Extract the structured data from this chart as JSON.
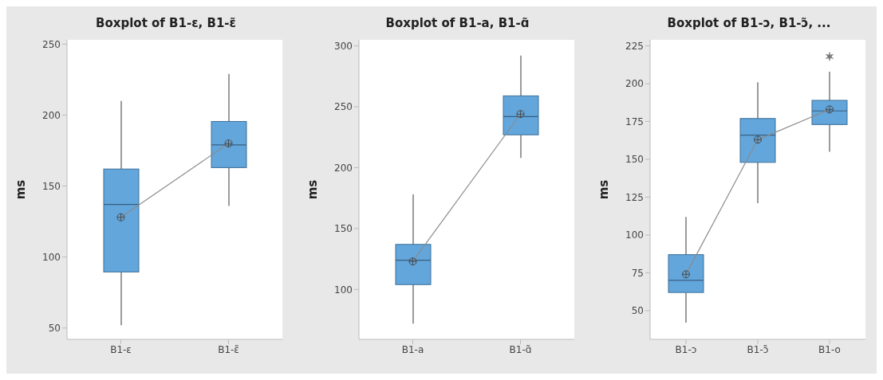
{
  "chart_data": [
    {
      "type": "box",
      "title": "Boxplot of B1-ε, B1-ε̃",
      "ylabel": "ms",
      "categories": [
        "B1-ε",
        "B1-ε̃"
      ],
      "ylim": [
        42,
        253
      ],
      "yticks": [
        50,
        100,
        150,
        200,
        250
      ],
      "grid": false,
      "legend": false,
      "color": "#62a6dc",
      "boxes": [
        {
          "low": 52,
          "q1": 89.5,
          "median": 137,
          "q3": 162,
          "high": 210,
          "mean": 128
        },
        {
          "low": 136,
          "q1": 163,
          "median": 179,
          "q3": 195.5,
          "high": 229,
          "mean": 180
        }
      ],
      "series": [
        {
          "type": "line",
          "color": "#8c8c8c",
          "values": [
            128,
            180
          ],
          "marker": "none"
        }
      ]
    },
    {
      "type": "box",
      "title": "Boxplot of B1-a, B1-ɑ̃",
      "ylabel": "ms",
      "categories": [
        "B1-a",
        "B1-ɑ̃"
      ],
      "ylim": [
        59,
        305
      ],
      "yticks": [
        100,
        150,
        200,
        250,
        300
      ],
      "grid": false,
      "legend": false,
      "color": "#62a6dc",
      "boxes": [
        {
          "low": 72,
          "q1": 104,
          "median": 124,
          "q3": 137,
          "high": 178,
          "mean": 123
        },
        {
          "low": 208,
          "q1": 227,
          "median": 242,
          "q3": 259,
          "high": 292,
          "mean": 244
        }
      ],
      "series": [
        {
          "type": "line",
          "color": "#8c8c8c",
          "values": [
            123,
            244
          ],
          "marker": "none"
        }
      ]
    },
    {
      "type": "box",
      "title": "Boxplot of B1-ɔ, B1-ɔ̃, ...",
      "ylabel": "ms",
      "categories": [
        "B1-ɔ",
        "B1-ɔ̃",
        "B1-o"
      ],
      "ylim": [
        31,
        229
      ],
      "yticks": [
        50,
        75,
        100,
        125,
        150,
        175,
        200,
        225
      ],
      "grid": false,
      "legend": false,
      "color": "#62a6dc",
      "boxes": [
        {
          "low": 42,
          "q1": 62,
          "median": 70,
          "q3": 87,
          "high": 112,
          "mean": 74
        },
        {
          "low": 121,
          "q1": 148,
          "median": 166,
          "q3": 177,
          "high": 201,
          "mean": 163
        },
        {
          "low": 155,
          "q1": 173,
          "median": 182,
          "q3": 189,
          "high": 208,
          "mean": 183,
          "outliers": [
            218
          ]
        }
      ],
      "series": [
        {
          "type": "line",
          "color": "#8c8c8c",
          "values": [
            74,
            163,
            183
          ],
          "marker": "none"
        }
      ]
    }
  ]
}
